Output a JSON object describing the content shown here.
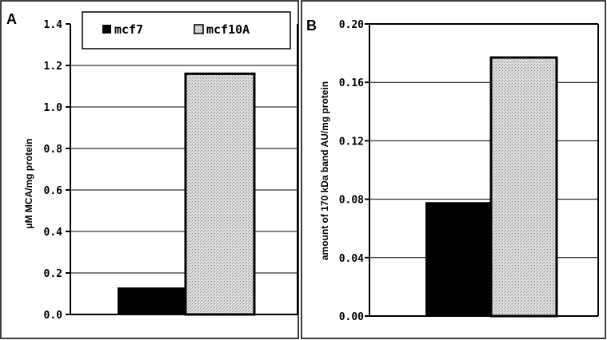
{
  "chart_data": [
    {
      "type": "bar",
      "panel_label": "A",
      "categories": [
        "mcf7",
        "mcf10A"
      ],
      "values": [
        0.13,
        1.16
      ],
      "ylabel": "µM MCA/mg  protein",
      "ylim": [
        0,
        1.4
      ],
      "yticks": [
        "0.0",
        "0.2",
        "0.4",
        "0.6",
        "0.8",
        "1.0",
        "1.2",
        "1.4"
      ],
      "grid": true,
      "legend": {
        "placement": "top",
        "entries": [
          "mcf7",
          "mcf10A"
        ]
      }
    },
    {
      "type": "bar",
      "panel_label": "B",
      "categories": [
        "mcf7",
        "mcf10A"
      ],
      "values": [
        0.078,
        0.177
      ],
      "ylabel": "amount of 170 kDa band AU/mg protein",
      "ylim": [
        0,
        0.2
      ],
      "yticks": [
        "0.00",
        "0.04",
        "0.08",
        "0.12",
        "0.16",
        "0.20"
      ],
      "grid": true
    }
  ],
  "colors": {
    "mcf7": "#000000",
    "mcf10A": "#c8c8c8"
  }
}
